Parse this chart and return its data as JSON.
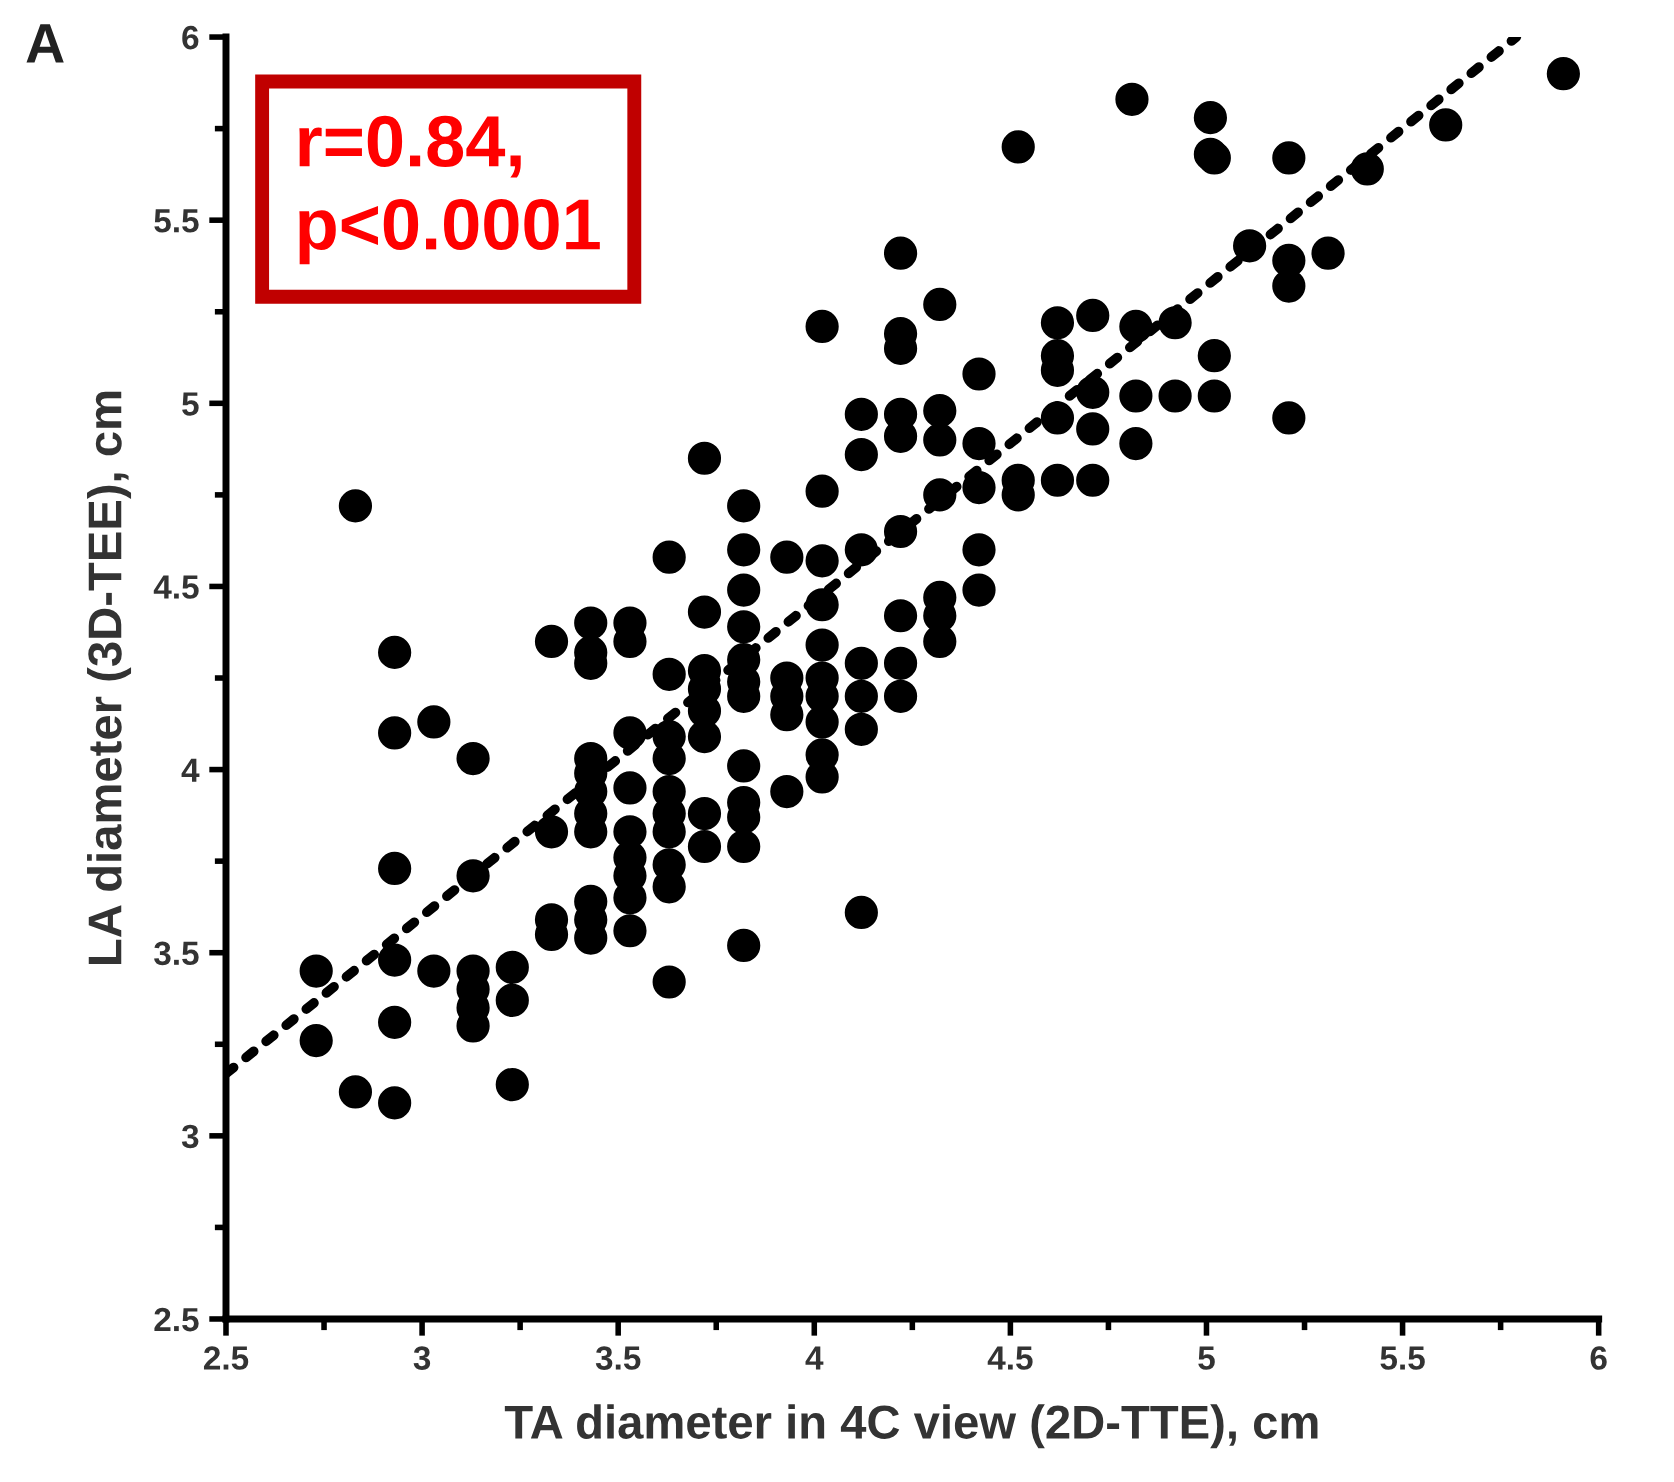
{
  "chart_data": {
    "type": "scatter",
    "xlabel": "TA diameter in 4C view (2D-TTE), cm",
    "ylabel": "LA diameter (3D-TEE), cm",
    "annotations": [
      "A",
      "r=0.84,\np<0.0001"
    ],
    "xlim": [
      2.5,
      6
    ],
    "ylim": [
      2.5,
      6
    ],
    "xticks": [
      {
        "value": 2.5,
        "label": "2.5"
      },
      {
        "value": 3,
        "label": "3"
      },
      {
        "value": 3.5,
        "label": "3.5"
      },
      {
        "value": 4,
        "label": "4"
      },
      {
        "value": 4.5,
        "label": "4.5"
      },
      {
        "value": 5,
        "label": "5"
      },
      {
        "value": 5.5,
        "label": "5.5"
      },
      {
        "value": 6,
        "label": "6"
      }
    ],
    "yticks": [
      {
        "value": 2.5,
        "label": "2.5"
      },
      {
        "value": 3,
        "label": "3"
      },
      {
        "value": 3.5,
        "label": "3.5"
      },
      {
        "value": 4,
        "label": "4"
      },
      {
        "value": 4.5,
        "label": "4.5"
      },
      {
        "value": 5,
        "label": "5"
      },
      {
        "value": 5.5,
        "label": "5.5"
      },
      {
        "value": 6,
        "label": "6"
      }
    ],
    "grid": false,
    "legend": false,
    "series": [
      {
        "color": "#000000",
        "marker": "circle",
        "x": [
          2.73,
          2.73,
          2.83,
          2.83,
          2.93,
          2.93,
          2.93,
          2.93,
          2.93,
          2.93,
          3.03,
          3.03,
          3.13,
          3.13,
          3.13,
          3.13,
          3.13,
          3.13,
          3.23,
          3.23,
          3.23,
          3.33,
          3.33,
          3.33,
          3.33,
          3.43,
          3.43,
          3.43,
          3.43,
          3.43,
          3.43,
          3.43,
          3.43,
          3.43,
          3.43,
          3.43,
          3.53,
          3.53,
          3.53,
          3.53,
          3.53,
          3.53,
          3.53,
          3.53,
          3.53,
          3.63,
          3.63,
          3.63,
          3.63,
          3.63,
          3.63,
          3.63,
          3.63,
          3.63,
          3.63,
          3.72,
          3.72,
          3.72,
          3.72,
          3.72,
          3.72,
          3.72,
          3.72,
          3.82,
          3.82,
          3.82,
          3.82,
          3.82,
          3.82,
          3.82,
          3.82,
          3.82,
          3.82,
          3.82,
          3.82,
          3.93,
          3.93,
          3.93,
          3.93,
          3.93,
          4.02,
          4.02,
          4.02,
          4.02,
          4.02,
          4.02,
          4.02,
          4.02,
          4.02,
          4.02,
          4.12,
          4.12,
          4.12,
          4.12,
          4.12,
          4.12,
          4.12,
          4.22,
          4.22,
          4.22,
          4.22,
          4.22,
          4.22,
          4.22,
          4.22,
          4.22,
          4.32,
          4.32,
          4.32,
          4.32,
          4.32,
          4.32,
          4.32,
          4.42,
          4.42,
          4.42,
          4.42,
          4.42,
          4.52,
          4.52,
          4.52,
          4.62,
          4.62,
          4.62,
          4.62,
          4.62,
          4.71,
          4.71,
          4.71,
          4.71,
          4.81,
          4.82,
          4.82,
          4.82,
          4.92,
          4.92,
          5.01,
          5.01,
          5.02,
          5.02,
          5.02,
          5.11,
          5.21,
          5.21,
          5.21,
          5.21,
          5.31,
          5.41,
          5.61,
          5.91
        ],
        "values": [
          3.45,
          3.26,
          4.72,
          3.12,
          4.32,
          4.1,
          3.73,
          3.48,
          3.31,
          3.09,
          4.13,
          3.45,
          4.03,
          3.71,
          3.45,
          3.4,
          3.35,
          3.3,
          3.46,
          3.37,
          3.14,
          4.35,
          3.83,
          3.59,
          3.55,
          4.4,
          4.32,
          4.29,
          4.03,
          3.99,
          3.94,
          3.88,
          3.83,
          3.64,
          3.59,
          3.54,
          4.4,
          4.35,
          4.1,
          3.95,
          3.83,
          3.76,
          3.71,
          3.65,
          3.56,
          4.58,
          4.26,
          4.09,
          4.03,
          3.94,
          3.88,
          3.83,
          3.74,
          3.68,
          3.42,
          4.85,
          4.43,
          4.27,
          4.22,
          4.16,
          4.09,
          3.88,
          3.79,
          4.72,
          4.6,
          4.49,
          4.39,
          4.3,
          4.24,
          4.2,
          4.01,
          3.91,
          3.87,
          3.79,
          3.52,
          4.58,
          4.25,
          4.2,
          4.15,
          3.94,
          5.21,
          4.76,
          4.57,
          4.45,
          4.34,
          4.25,
          4.2,
          4.13,
          4.04,
          3.98,
          4.97,
          4.86,
          4.6,
          4.29,
          4.2,
          4.11,
          3.61,
          5.41,
          5.19,
          5.15,
          4.97,
          4.91,
          4.65,
          4.42,
          4.29,
          4.2,
          5.27,
          4.98,
          4.9,
          4.75,
          4.47,
          4.42,
          4.35,
          5.08,
          4.89,
          4.77,
          4.6,
          4.49,
          5.7,
          4.79,
          4.75,
          5.22,
          5.13,
          5.09,
          4.96,
          4.79,
          5.24,
          5.03,
          4.93,
          4.79,
          5.83,
          5.21,
          5.02,
          4.89,
          5.22,
          5.02,
          5.78,
          5.68,
          5.67,
          5.13,
          5.02,
          5.43,
          5.67,
          5.39,
          5.32,
          4.96,
          5.41,
          5.64,
          5.76,
          5.9
        ]
      },
      {
        "type": "line",
        "color": "#000000",
        "marker": "none",
        "line_style": "dotted",
        "x": [
          2.5,
          5.79
        ],
        "values": [
          3.17,
          6.0
        ]
      }
    ]
  }
}
